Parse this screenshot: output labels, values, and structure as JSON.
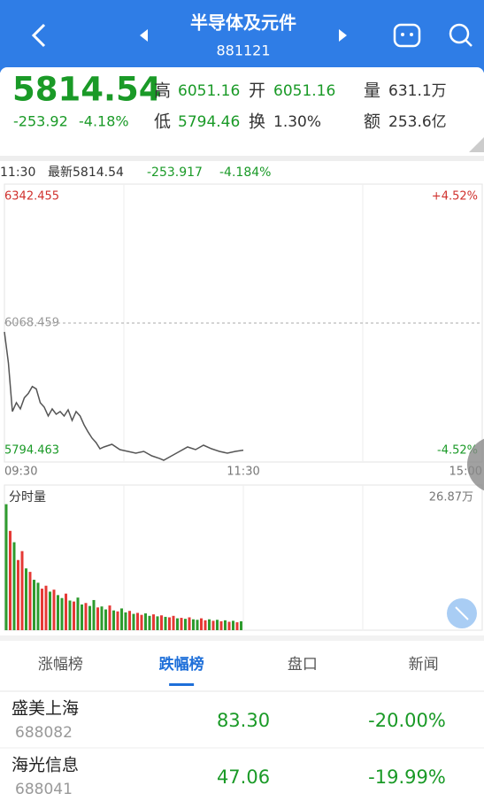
{
  "header": {
    "title": "半导体及元件",
    "code": "881121"
  },
  "quote": {
    "price": "5814.54",
    "change": "-253.92",
    "change_pct": "-4.18%",
    "high_label": "高",
    "high": "6051.16",
    "open_label": "开",
    "open": "6051.16",
    "volume_label": "量",
    "volume": "631.1万",
    "low_label": "低",
    "low": "5794.46",
    "turnover_label": "换",
    "turnover": "1.30%",
    "amount_label": "额",
    "amount": "253.6亿"
  },
  "status_line": {
    "time": "11:30",
    "latest": "最新5814.54",
    "change": "-253.917",
    "change_pct": "-4.184%"
  },
  "chart_data": [
    {
      "type": "line",
      "color": "#555555",
      "x": [
        0,
        2,
        4,
        6,
        8,
        10,
        12,
        14,
        16,
        18,
        20,
        22,
        24,
        26,
        28,
        30,
        32,
        34,
        36,
        38,
        40,
        42,
        44,
        46,
        48,
        50,
        54,
        58,
        62,
        66,
        70,
        74,
        78,
        80,
        84,
        88,
        92,
        96,
        100,
        104,
        108,
        112,
        116,
        120
      ],
      "values": [
        6050.8,
        5988.9,
        5891.7,
        5909.4,
        5897.0,
        5919.2,
        5927.9,
        5941.7,
        5936.9,
        5909.4,
        5900.5,
        5882.9,
        5897.0,
        5886.4,
        5891.7,
        5882.9,
        5895.2,
        5874.0,
        5891.7,
        5882.9,
        5865.2,
        5851.1,
        5838.7,
        5829.8,
        5817.4,
        5821.0,
        5826.3,
        5815.7,
        5812.1,
        5808.6,
        5812.1,
        5803.3,
        5797.9,
        5794.5,
        5803.3,
        5812.1,
        5821.0,
        5815.7,
        5824.5,
        5817.4,
        5812.1,
        5808.6,
        5812.1,
        5814.5
      ],
      "xlim": [
        0,
        240
      ],
      "xticks": [
        {
          "value": 0,
          "label": "09:30"
        },
        {
          "value": 120,
          "label": "11:30"
        },
        {
          "value": 240,
          "label": "15:00"
        }
      ],
      "ylim": [
        5794.463,
        6342.455
      ],
      "yticks": [
        6342.455,
        6068.459,
        5794.463
      ],
      "y2lim": [
        -4.52,
        4.52
      ],
      "y2ticks": [
        {
          "value": 4.52,
          "label": "+4.52%"
        },
        {
          "value": -4.52,
          "label": "-4.52%"
        }
      ]
    },
    {
      "type": "bar",
      "title": "分时量",
      "x": [
        0,
        2,
        4,
        6,
        8,
        10,
        12,
        14,
        16,
        18,
        20,
        22,
        24,
        26,
        28,
        30,
        32,
        34,
        36,
        38,
        40,
        42,
        44,
        46,
        48,
        50,
        52,
        54,
        56,
        58,
        60,
        62,
        64,
        66,
        68,
        70,
        72,
        74,
        76,
        78,
        80,
        82,
        84,
        86,
        88,
        90,
        92,
        94,
        96,
        98,
        100,
        102,
        104,
        106,
        108,
        110,
        112,
        114,
        116,
        118
      ],
      "values": [
        25.5,
        20.1,
        17.8,
        14.2,
        16.0,
        12.5,
        11.8,
        10.2,
        9.6,
        8.4,
        9.0,
        7.8,
        8.2,
        7.1,
        6.5,
        7.4,
        6.0,
        5.8,
        6.6,
        5.2,
        5.5,
        4.9,
        6.1,
        4.6,
        4.8,
        4.2,
        5.0,
        4.0,
        3.8,
        4.4,
        3.6,
        3.9,
        3.3,
        3.5,
        3.1,
        3.4,
        2.9,
        3.2,
        2.8,
        3.0,
        2.7,
        2.6,
        2.9,
        2.4,
        2.5,
        2.3,
        2.6,
        2.2,
        2.1,
        2.4,
        2.0,
        2.2,
        1.9,
        2.1,
        1.8,
        2.0,
        1.7,
        1.9,
        1.6,
        1.8
      ],
      "colors": [
        "#2e9b2e",
        "#e53935",
        "#2e9b2e",
        "#e53935",
        "#e53935",
        "#2e9b2e",
        "#e53935",
        "#2e9b2e",
        "#2e9b2e",
        "#e53935",
        "#e53935",
        "#2e9b2e",
        "#e53935",
        "#2e9b2e",
        "#2e9b2e",
        "#e53935",
        "#2e9b2e",
        "#e53935",
        "#2e9b2e",
        "#2e9b2e",
        "#e53935",
        "#2e9b2e",
        "#2e9b2e",
        "#e53935",
        "#2e9b2e",
        "#2e9b2e",
        "#e53935",
        "#2e9b2e",
        "#e53935",
        "#2e9b2e",
        "#2e9b2e",
        "#e53935",
        "#2e9b2e",
        "#e53935",
        "#e53935",
        "#2e9b2e",
        "#2e9b2e",
        "#e53935",
        "#2e9b2e",
        "#e53935",
        "#2e9b2e",
        "#e53935",
        "#e53935",
        "#2e9b2e",
        "#e53935",
        "#2e9b2e",
        "#e53935",
        "#2e9b2e",
        "#2e9b2e",
        "#e53935",
        "#e53935",
        "#2e9b2e",
        "#e53935",
        "#2e9b2e",
        "#e53935",
        "#2e9b2e",
        "#e53935",
        "#2e9b2e",
        "#e53935",
        "#2e9b2e"
      ],
      "xlim": [
        0,
        240
      ],
      "ylim": [
        0,
        26.87
      ],
      "yticks": [
        {
          "value": 26.87,
          "label": "26.87万"
        }
      ]
    }
  ],
  "tabs": [
    "涨幅榜",
    "跌幅榜",
    "盘口",
    "新闻"
  ],
  "active_tab": 1,
  "stocks": [
    {
      "name": "盛美上海",
      "code": "688082",
      "price": "83.30",
      "change_pct": "-20.00%"
    },
    {
      "name": "海光信息",
      "code": "688041",
      "price": "47.06",
      "change_pct": "-19.99%"
    }
  ]
}
